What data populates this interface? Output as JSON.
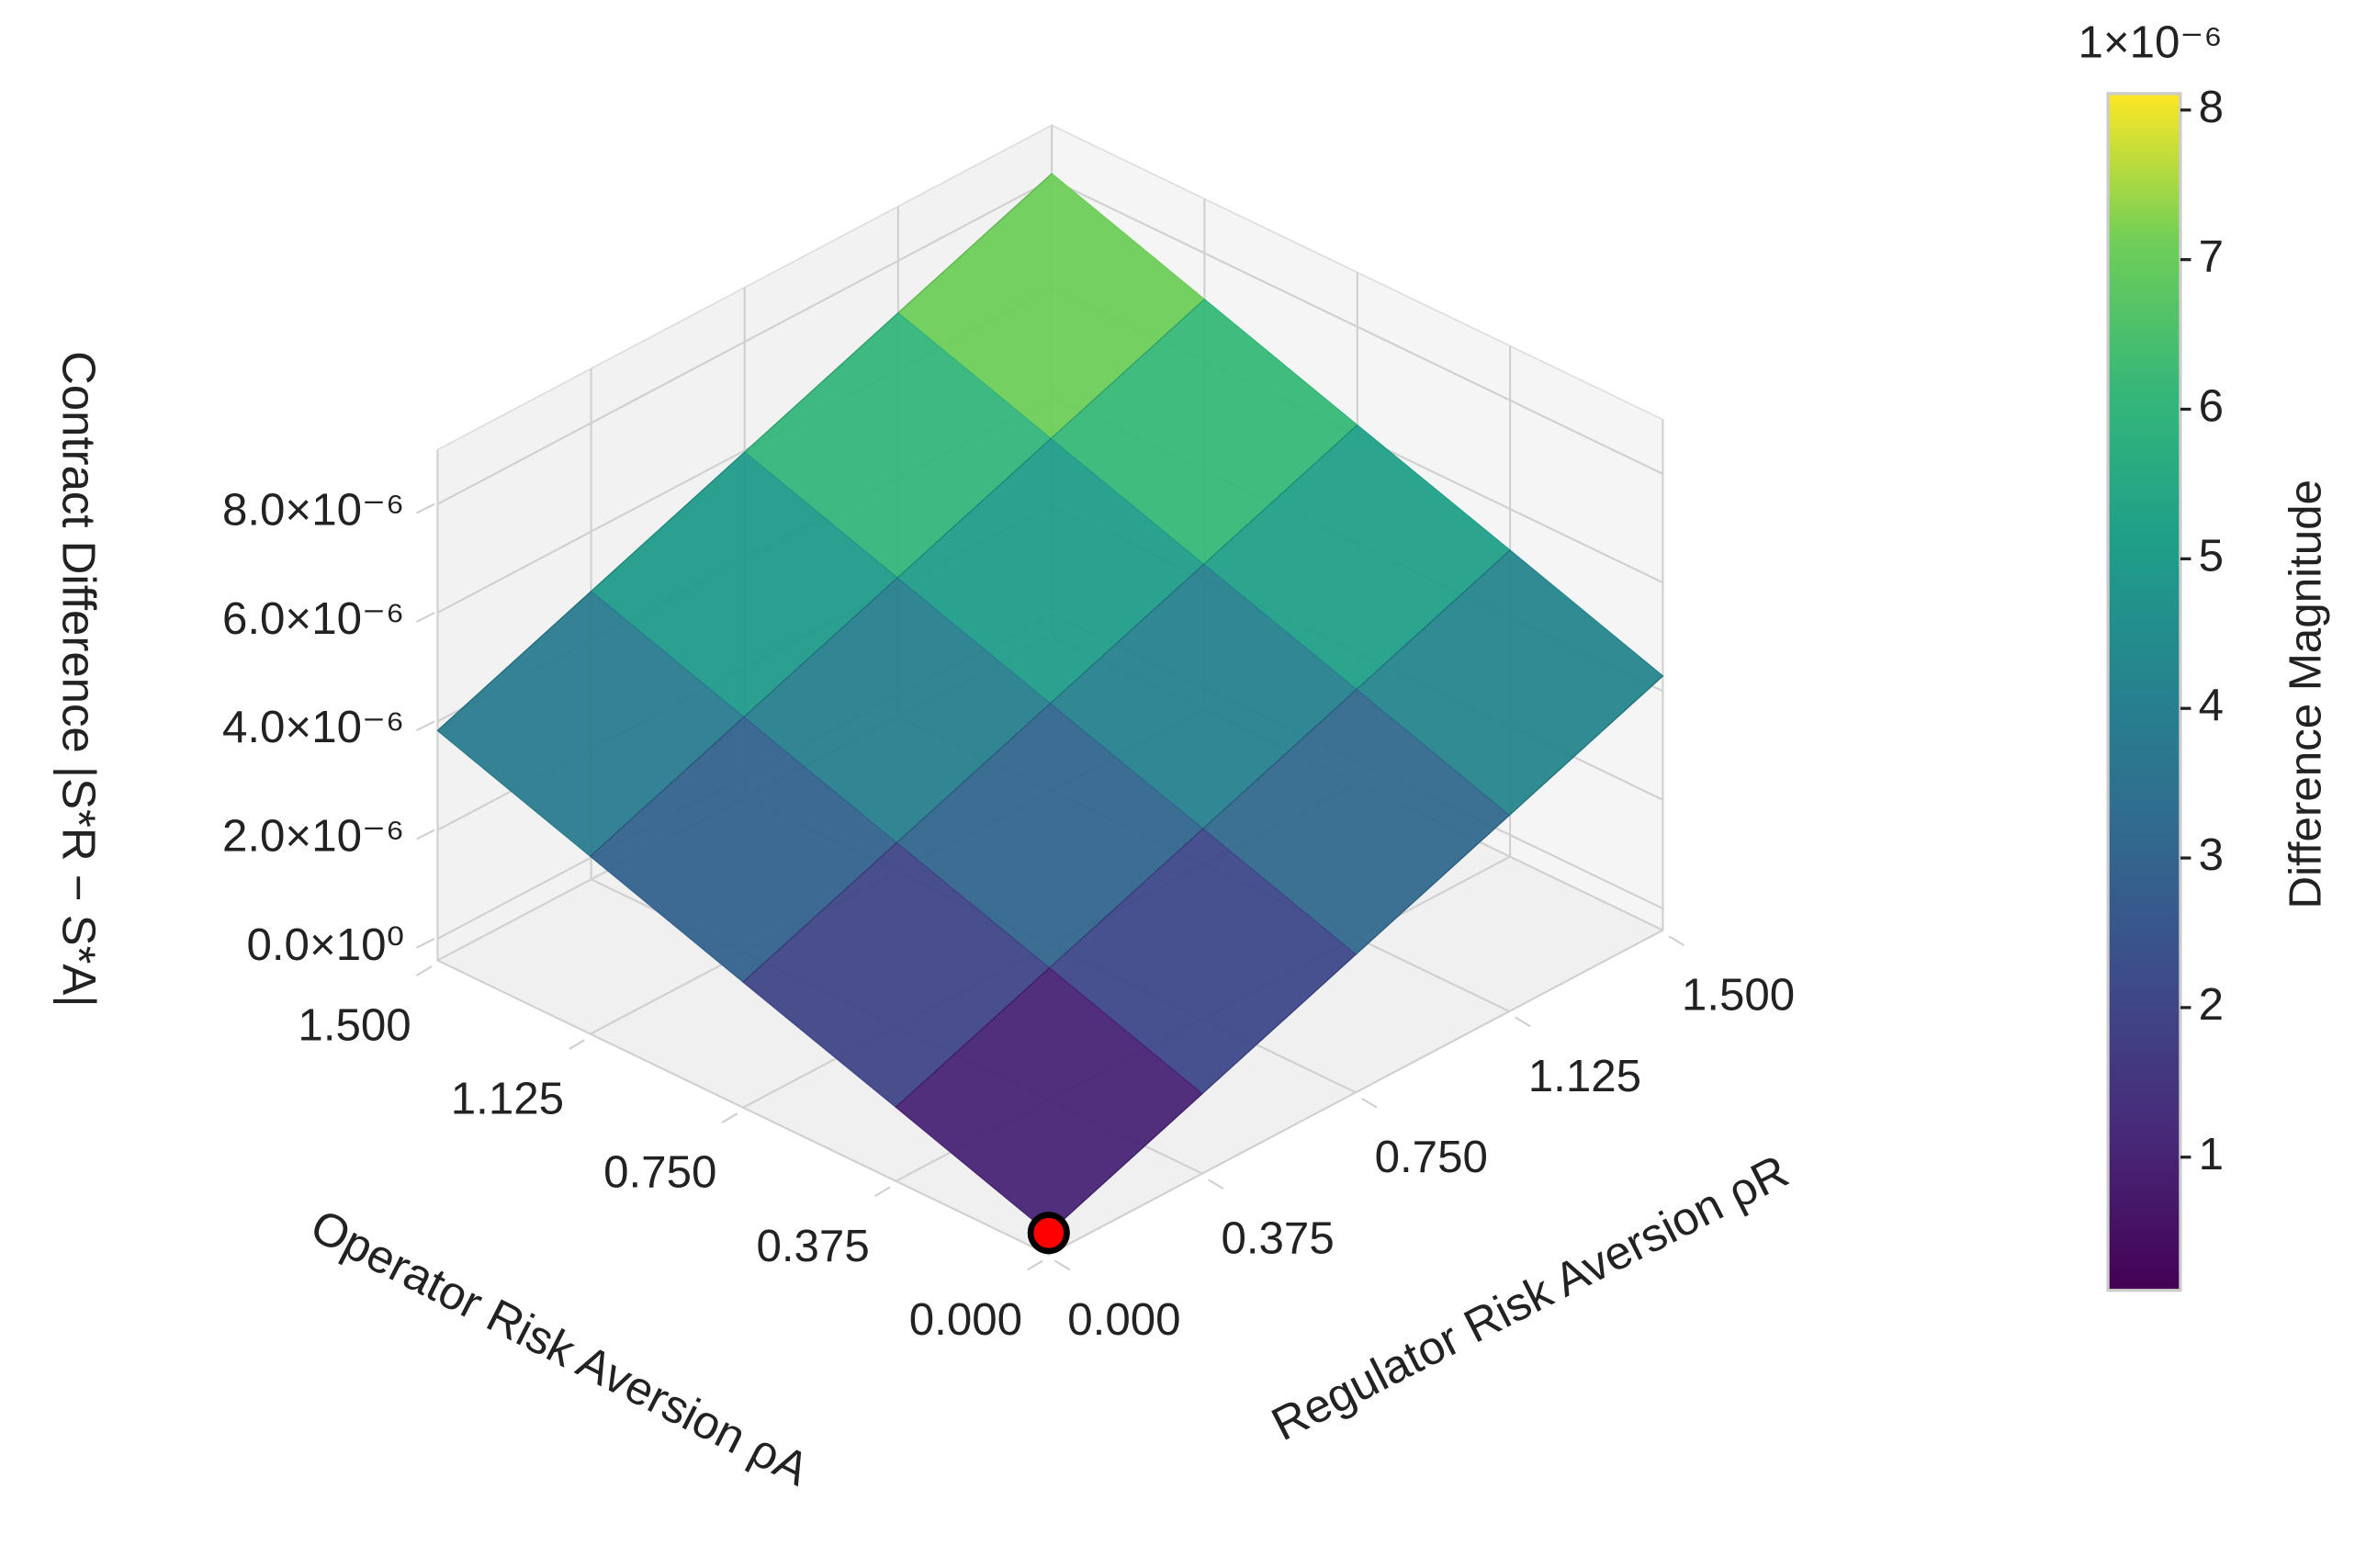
{
  "chart_data": {
    "type": "surface",
    "x_label": "Operator Risk Aversion ρA",
    "y_label": "Regulator Risk Aversion ρR",
    "z_label": "Contract Difference |S*R − S*A|",
    "colorbar_label": "Difference Magnitude",
    "colorbar_offset": "1×10⁻⁶",
    "x": [
      0,
      0.375,
      0.75,
      1.125,
      1.5
    ],
    "y": [
      0,
      0.375,
      0.75,
      1.125,
      1.5
    ],
    "z": [
      [
        0,
        1.07e-06,
        2.14e-06,
        3.21e-06,
        4.28e-06
      ],
      [
        9.6e-07,
        2.03e-06,
        3.1e-06,
        4.17e-06,
        5.24e-06
      ],
      [
        1.91e-06,
        2.98e-06,
        4.05e-06,
        5.12e-06,
        6.19e-06
      ],
      [
        2.87e-06,
        3.94e-06,
        5.01e-06,
        6.08e-06,
        7.15e-06
      ],
      [
        3.83e-06,
        4.9e-06,
        5.97e-06,
        7.04e-06,
        8.11e-06
      ]
    ],
    "marker": {
      "x": 0,
      "y": 0,
      "z": 0,
      "color": "#ff0000"
    },
    "xlim": [
      0,
      1.5
    ],
    "ylim": [
      0,
      1.5
    ],
    "zlim": [
      -4e-07,
      9e-06
    ],
    "xticks": [
      {
        "value": 0,
        "label": "0.000"
      },
      {
        "value": 0.375,
        "label": "0.375"
      },
      {
        "value": 0.75,
        "label": "0.750"
      },
      {
        "value": 1.125,
        "label": "1.125"
      },
      {
        "value": 1.5,
        "label": "1.500"
      }
    ],
    "yticks": [
      {
        "value": 0,
        "label": "0.000"
      },
      {
        "value": 0.375,
        "label": "0.375"
      },
      {
        "value": 0.75,
        "label": "0.750"
      },
      {
        "value": 1.125,
        "label": "1.125"
      },
      {
        "value": 1.5,
        "label": "1.500"
      }
    ],
    "zticks": [
      {
        "value": 0,
        "label": "0.0×10⁰"
      },
      {
        "value": 2e-06,
        "label": "2.0×10⁻⁶"
      },
      {
        "value": 4e-06,
        "label": "4.0×10⁻⁶"
      },
      {
        "value": 6e-06,
        "label": "6.0×10⁻⁶"
      },
      {
        "value": 8e-06,
        "label": "8.0×10⁻⁶"
      }
    ],
    "clim": [
      1.1e-07,
      8.11e-06
    ],
    "cticks": [
      {
        "value": 1e-06,
        "label": "1"
      },
      {
        "value": 2e-06,
        "label": "2"
      },
      {
        "value": 3e-06,
        "label": "3"
      },
      {
        "value": 4e-06,
        "label": "4"
      },
      {
        "value": 5e-06,
        "label": "5"
      },
      {
        "value": 6e-06,
        "label": "6"
      },
      {
        "value": 7e-06,
        "label": "7"
      },
      {
        "value": 8e-06,
        "label": "8"
      }
    ],
    "colormap": "viridis",
    "grid": true
  }
}
